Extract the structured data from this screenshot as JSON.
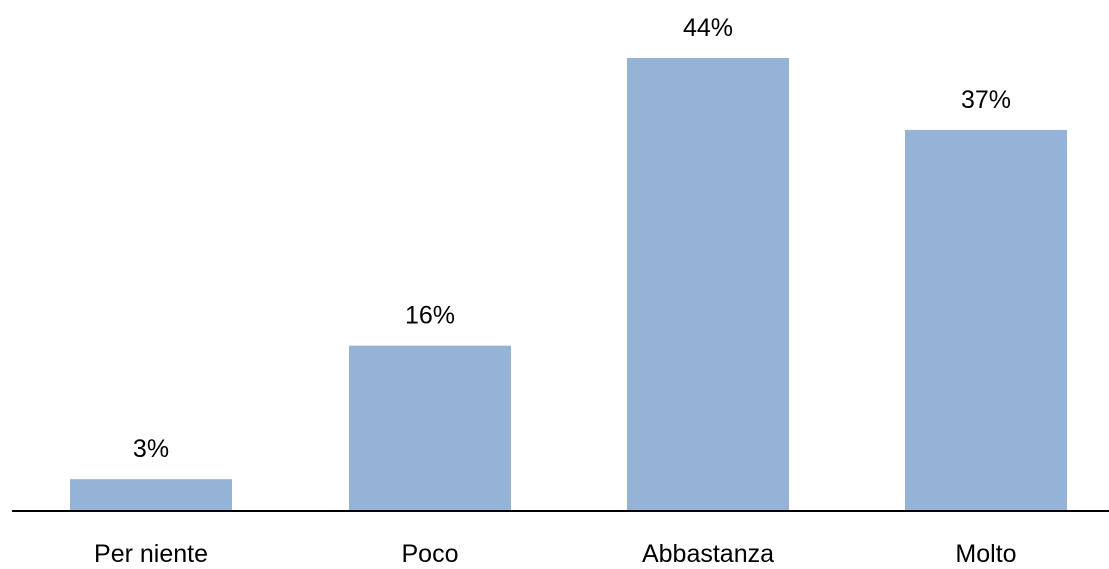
{
  "chart_data": {
    "type": "bar",
    "categories": [
      "Per niente",
      "Poco",
      "Abbastanza",
      "Molto"
    ],
    "values": [
      3,
      16,
      44,
      37
    ],
    "value_labels": [
      "3%",
      "16%",
      "44%",
      "37%"
    ],
    "title": "",
    "xlabel": "",
    "ylabel": "",
    "ylim": [
      0,
      44
    ],
    "grid": false,
    "legend": "none",
    "colors": {
      "bar": "#95b3d7",
      "axis": "#000000",
      "text": "#000000"
    }
  }
}
